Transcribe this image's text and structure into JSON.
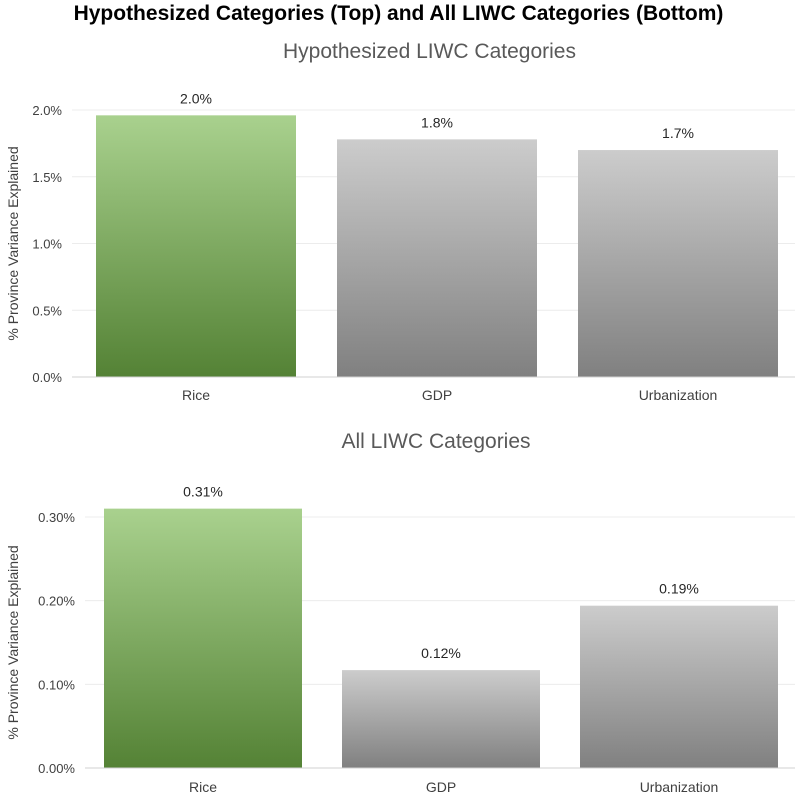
{
  "figure_title": "Hypothesized Categories (Top) and All LIWC Categories (Bottom)",
  "chart_data": [
    {
      "type": "bar",
      "title": "Hypothesized LIWC Categories",
      "xlabel": "",
      "ylabel": "% Province Variance Explained",
      "categories": [
        "Rice",
        "GDP",
        "Urbanization"
      ],
      "values": [
        1.96,
        1.78,
        1.7
      ],
      "data_labels": [
        "2.0%",
        "1.8%",
        "1.7%"
      ],
      "ylim": [
        0,
        2.0
      ],
      "yticks": [
        0,
        0.5,
        1.0,
        1.5,
        2.0
      ],
      "ytick_labels": [
        "0.0%",
        "0.5%",
        "1.0%",
        "1.5%",
        "2.0%"
      ],
      "grid": true,
      "colors": {
        "highlight_top": "#a9d18e",
        "highlight_bottom": "#548235",
        "default_top": "#cccccc",
        "default_bottom": "#808080"
      }
    },
    {
      "type": "bar",
      "title": "All LIWC Categories",
      "xlabel": "",
      "ylabel": "% Province Variance Explained",
      "categories": [
        "Rice",
        "GDP",
        "Urbanization"
      ],
      "values": [
        0.31,
        0.117,
        0.194
      ],
      "data_labels": [
        "0.31%",
        "0.12%",
        "0.19%"
      ],
      "ylim": [
        0,
        0.3
      ],
      "yticks": [
        0,
        0.1,
        0.2,
        0.3
      ],
      "ytick_labels": [
        "0.00%",
        "0.10%",
        "0.20%",
        "0.30%"
      ],
      "grid": true,
      "colors": {
        "highlight_top": "#a9d18e",
        "highlight_bottom": "#548235",
        "default_top": "#cccccc",
        "default_bottom": "#808080"
      }
    }
  ]
}
